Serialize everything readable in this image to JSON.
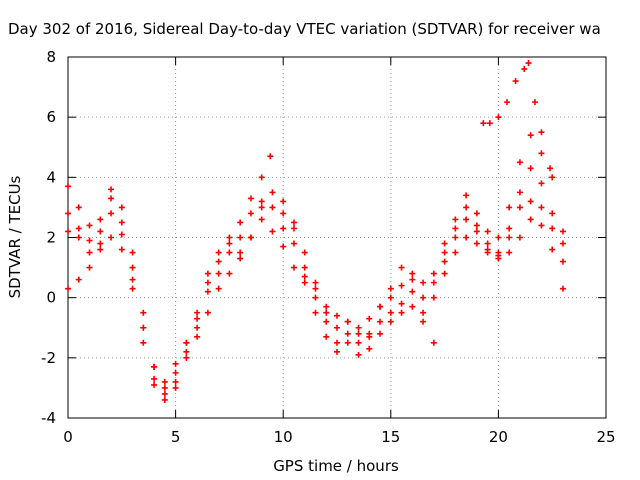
{
  "chart_data": {
    "type": "scatter",
    "title": "Day 302 of 2016, Sidereal Day-to-day VTEC variation (SDTVAR) for receiver wa",
    "xlabel": "GPS time / hours",
    "ylabel": "SDTVAR / TECUs",
    "xlim": [
      0,
      25
    ],
    "ylim": [
      -4,
      8
    ],
    "xticks": [
      "0",
      "5",
      "10",
      "15",
      "20",
      "25"
    ],
    "yticks": [
      "-4",
      "-2",
      "0",
      "2",
      "4",
      "6",
      "8"
    ],
    "grid": true,
    "marker": "+",
    "color": "#ff0000",
    "series": [
      {
        "points": [
          [
            0,
            3.7
          ],
          [
            0.5,
            3.0
          ],
          [
            1.0,
            2.4
          ],
          [
            1.5,
            2.6
          ],
          [
            2.0,
            3.6
          ],
          [
            2.5,
            3.0
          ],
          [
            3.0,
            1.5
          ],
          [
            3.5,
            -0.5
          ],
          [
            4.0,
            -2.3
          ],
          [
            4.5,
            -3.0
          ],
          [
            5.0,
            -2.5
          ],
          [
            5.5,
            -1.5
          ],
          [
            6.0,
            -0.7
          ],
          [
            6.5,
            0.2
          ],
          [
            7.0,
            0.8
          ],
          [
            7.5,
            1.5
          ],
          [
            8.0,
            2.5
          ],
          [
            8.5,
            3.3
          ],
          [
            9.0,
            4.0
          ],
          [
            9.4,
            4.7
          ],
          [
            10.0,
            3.2
          ],
          [
            10.5,
            2.5
          ],
          [
            11.0,
            1.5
          ],
          [
            11.5,
            0.5
          ],
          [
            12.0,
            -0.5
          ],
          [
            12.5,
            -1.0
          ],
          [
            13.0,
            -0.8
          ],
          [
            13.5,
            -1.0
          ],
          [
            14.0,
            -0.7
          ],
          [
            14.5,
            -0.3
          ],
          [
            15.0,
            0
          ],
          [
            15.5,
            0.4
          ],
          [
            16.0,
            0.6
          ],
          [
            16.5,
            0.5
          ],
          [
            17.0,
            0.8
          ],
          [
            17.5,
            1.8
          ],
          [
            18.0,
            2.6
          ],
          [
            18.5,
            3.4
          ],
          [
            19.0,
            2.8
          ],
          [
            19.5,
            2.2
          ],
          [
            20.0,
            2.0
          ],
          [
            20.5,
            3.0
          ],
          [
            21.0,
            4.5
          ],
          [
            21.5,
            5.4
          ],
          [
            22.0,
            4.8
          ],
          [
            22.5,
            4.0
          ],
          [
            23.0,
            2.2
          ]
        ]
      },
      {
        "points": [
          [
            0,
            2.8
          ],
          [
            0.5,
            2.3
          ],
          [
            1.0,
            1.9
          ],
          [
            1.5,
            2.2
          ],
          [
            2.0,
            3.3
          ],
          [
            2.5,
            2.5
          ],
          [
            3.0,
            1.0
          ],
          [
            3.5,
            -1.0
          ],
          [
            4.0,
            -2.7
          ],
          [
            4.5,
            -3.2
          ],
          [
            5.0,
            -2.8
          ],
          [
            5.5,
            -1.8
          ],
          [
            6.0,
            -1.0
          ],
          [
            6.5,
            0.5
          ],
          [
            7.0,
            1.2
          ],
          [
            7.5,
            1.8
          ],
          [
            8.0,
            2.0
          ],
          [
            8.5,
            2.8
          ],
          [
            9.0,
            3.2
          ],
          [
            9.5,
            3.5
          ],
          [
            10.0,
            2.8
          ],
          [
            10.5,
            2.3
          ],
          [
            11.0,
            1.0
          ],
          [
            11.5,
            0
          ],
          [
            12.0,
            -0.8
          ],
          [
            12.5,
            -1.5
          ],
          [
            13.0,
            -1.2
          ],
          [
            13.5,
            -1.5
          ],
          [
            14.0,
            -1.3
          ],
          [
            14.5,
            -0.8
          ],
          [
            15.0,
            -0.5
          ],
          [
            15.5,
            -0.2
          ],
          [
            16.0,
            0.2
          ],
          [
            16.5,
            0
          ],
          [
            17.0,
            0.5
          ],
          [
            17.5,
            1.5
          ],
          [
            18.0,
            2.3
          ],
          [
            18.5,
            3.0
          ],
          [
            19.0,
            2.4
          ],
          [
            19.5,
            1.8
          ],
          [
            20.0,
            1.5
          ],
          [
            20.5,
            2.3
          ],
          [
            21.0,
            3.5
          ],
          [
            21.5,
            4.3
          ],
          [
            22.0,
            3.8
          ],
          [
            22.5,
            2.8
          ],
          [
            23.0,
            1.8
          ]
        ]
      },
      {
        "points": [
          [
            0,
            2.2
          ],
          [
            0.5,
            2.0
          ],
          [
            1.0,
            1.5
          ],
          [
            1.5,
            1.8
          ],
          [
            2.0,
            2.8
          ],
          [
            2.5,
            2.1
          ],
          [
            3.0,
            0.6
          ],
          [
            3.5,
            -1.5
          ],
          [
            4.0,
            -2.9
          ],
          [
            4.5,
            -3.4
          ],
          [
            5.0,
            -3.0
          ],
          [
            5.5,
            -2.0
          ],
          [
            6.0,
            -1.3
          ],
          [
            6.5,
            -0.5
          ],
          [
            7.0,
            0.3
          ],
          [
            7.5,
            0.8
          ],
          [
            8.0,
            1.3
          ],
          [
            8.5,
            2.0
          ],
          [
            9.0,
            2.6
          ],
          [
            9.5,
            3.0
          ],
          [
            10.0,
            2.3
          ],
          [
            10.5,
            1.8
          ],
          [
            11.0,
            0.5
          ],
          [
            11.5,
            -0.5
          ],
          [
            12.0,
            -1.3
          ],
          [
            12.5,
            -1.8
          ],
          [
            13.0,
            -1.5
          ],
          [
            13.5,
            -1.9
          ],
          [
            14.0,
            -1.7
          ],
          [
            14.5,
            -1.2
          ],
          [
            15.0,
            -0.8
          ],
          [
            15.5,
            -0.5
          ],
          [
            16.0,
            -0.3
          ],
          [
            16.5,
            -0.5
          ],
          [
            17.0,
            0
          ],
          [
            17.5,
            1.2
          ],
          [
            18.0,
            2.0
          ],
          [
            18.5,
            2.6
          ],
          [
            19.0,
            2.2
          ],
          [
            19.5,
            1.6
          ],
          [
            20.0,
            1.3
          ],
          [
            20.5,
            2.0
          ],
          [
            21.0,
            3.0
          ],
          [
            21.5,
            3.2
          ],
          [
            22.0,
            3.0
          ],
          [
            22.5,
            2.3
          ],
          [
            23.0,
            1.2
          ]
        ]
      },
      {
        "points": [
          [
            0,
            0.3
          ],
          [
            0.5,
            0.6
          ],
          [
            1.0,
            1.0
          ],
          [
            1.5,
            1.6
          ],
          [
            2.0,
            2.0
          ],
          [
            2.5,
            1.6
          ],
          [
            3.0,
            0.3
          ],
          [
            3.5,
            -1.0
          ],
          [
            4.0,
            -2.3
          ],
          [
            4.5,
            -2.8
          ],
          [
            5.0,
            -2.2
          ],
          [
            5.5,
            -1.5
          ],
          [
            6.0,
            -0.5
          ],
          [
            6.5,
            0.8
          ],
          [
            7.0,
            1.5
          ],
          [
            7.5,
            2.0
          ],
          [
            8.0,
            1.5
          ],
          [
            8.5,
            2.0
          ],
          [
            9.0,
            3.0
          ],
          [
            9.5,
            2.2
          ],
          [
            10.0,
            1.7
          ],
          [
            10.5,
            1.0
          ],
          [
            11.0,
            0.7
          ],
          [
            11.5,
            0.3
          ],
          [
            12.0,
            -0.3
          ],
          [
            12.5,
            -0.6
          ],
          [
            13.0,
            -0.8
          ],
          [
            13.5,
            -1.2
          ],
          [
            14.0,
            -1.2
          ],
          [
            14.5,
            -0.3
          ],
          [
            15.0,
            0.3
          ],
          [
            15.5,
            1.0
          ],
          [
            16.0,
            0.8
          ],
          [
            16.5,
            -0.8
          ],
          [
            17.0,
            -1.5
          ],
          [
            17.5,
            0.8
          ],
          [
            18.0,
            1.5
          ],
          [
            18.5,
            2.0
          ],
          [
            19.0,
            1.8
          ],
          [
            19.5,
            1.5
          ],
          [
            20.0,
            1.4
          ],
          [
            20.5,
            1.5
          ],
          [
            21.0,
            2.0
          ],
          [
            21.5,
            2.6
          ],
          [
            22.0,
            2.4
          ],
          [
            22.5,
            1.6
          ],
          [
            23.0,
            0.3
          ]
        ]
      },
      {
        "points": [
          [
            19.3,
            5.8
          ],
          [
            19.6,
            5.8
          ],
          [
            20.0,
            6.0
          ],
          [
            20.4,
            6.5
          ],
          [
            20.8,
            7.2
          ],
          [
            21.2,
            7.6
          ],
          [
            21.4,
            7.8
          ],
          [
            21.7,
            6.5
          ],
          [
            22.0,
            5.5
          ],
          [
            22.4,
            4.3
          ]
        ]
      }
    ]
  }
}
